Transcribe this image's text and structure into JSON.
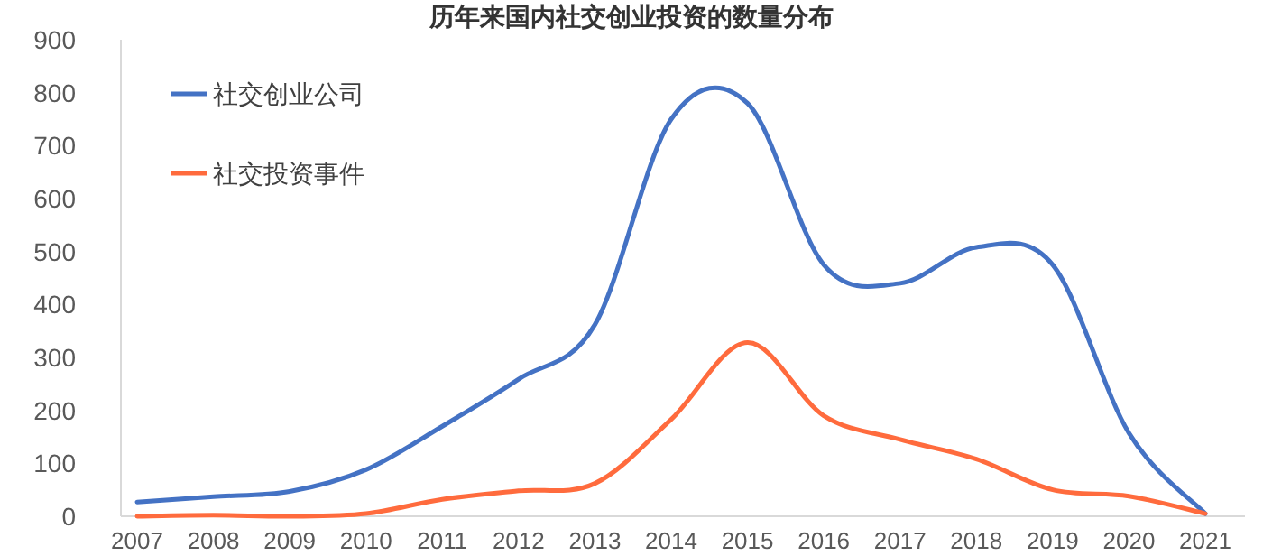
{
  "chart_data": {
    "type": "line",
    "title": "历年来国内社交创业投资的数量分布",
    "categories": [
      "2007",
      "2008",
      "2009",
      "2010",
      "2011",
      "2012",
      "2013",
      "2014",
      "2015",
      "2016",
      "2017",
      "2018",
      "2019",
      "2020",
      "2021"
    ],
    "series": [
      {
        "name": "社交创业公司",
        "color": "#4472c4",
        "values": [
          27,
          37,
          47,
          88,
          170,
          259,
          362,
          750,
          780,
          475,
          440,
          508,
          475,
          157,
          5
        ]
      },
      {
        "name": "社交投资事件",
        "color": "#ff6b3d",
        "values": [
          0,
          2,
          0,
          5,
          32,
          48,
          62,
          183,
          328,
          190,
          145,
          108,
          50,
          38,
          5
        ]
      }
    ],
    "ylim": [
      0,
      900
    ],
    "yticks": [
      0,
      100,
      200,
      300,
      400,
      500,
      600,
      700,
      800,
      900
    ],
    "grid": false,
    "legend": "top left",
    "marker": "none",
    "line_style": "solid"
  }
}
